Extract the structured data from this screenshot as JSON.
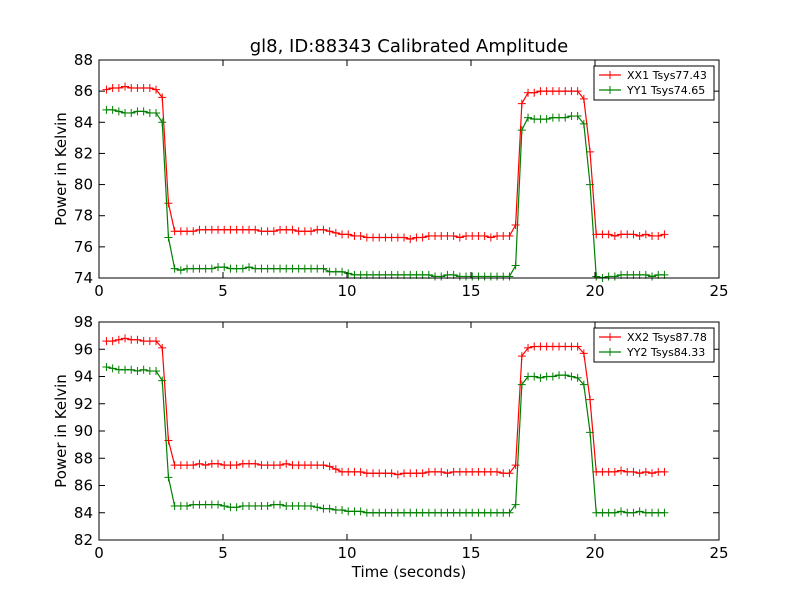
{
  "chart_data": [
    {
      "type": "line",
      "title": "gl8, ID:88343 Calibrated Amplitude",
      "xlabel": "",
      "ylabel": "Power in Kelvin",
      "xlim": [
        0,
        25
      ],
      "ylim": [
        74,
        88
      ],
      "xticks": [
        "0",
        "5",
        "10",
        "15",
        "20",
        "25"
      ],
      "yticks": [
        "74",
        "76",
        "78",
        "80",
        "82",
        "84",
        "86",
        "88"
      ],
      "legend_position": "top-right",
      "x": [
        0.3,
        0.55,
        0.8,
        1.05,
        1.3,
        1.55,
        1.8,
        2.05,
        2.3,
        2.55,
        2.8,
        3.05,
        3.3,
        3.55,
        3.8,
        4.05,
        4.3,
        4.55,
        4.8,
        5.05,
        5.3,
        5.55,
        5.8,
        6.05,
        6.3,
        6.55,
        6.8,
        7.05,
        7.3,
        7.55,
        7.8,
        8.05,
        8.3,
        8.55,
        8.8,
        9.05,
        9.3,
        9.55,
        9.8,
        10.05,
        10.3,
        10.55,
        10.8,
        11.05,
        11.3,
        11.55,
        11.8,
        12.05,
        12.3,
        12.55,
        12.8,
        13.05,
        13.3,
        13.55,
        13.8,
        14.05,
        14.3,
        14.55,
        14.8,
        15.05,
        15.3,
        15.55,
        15.8,
        16.05,
        16.3,
        16.55,
        16.8,
        17.05,
        17.3,
        17.55,
        17.8,
        18.05,
        18.3,
        18.55,
        18.8,
        19.05,
        19.3,
        19.55,
        19.8,
        20.05,
        20.3,
        20.55,
        20.8,
        21.05,
        21.3,
        21.55,
        21.8,
        22.05,
        22.3,
        22.55,
        22.8
      ],
      "series": [
        {
          "name": "XX1 Tsys77.43",
          "color": "#ff0000",
          "values": [
            86.1,
            86.2,
            86.2,
            86.3,
            86.2,
            86.2,
            86.2,
            86.2,
            86.1,
            85.6,
            78.8,
            77.0,
            77.0,
            77.0,
            77.0,
            77.1,
            77.1,
            77.1,
            77.1,
            77.1,
            77.1,
            77.1,
            77.1,
            77.1,
            77.1,
            77.0,
            77.0,
            77.0,
            77.1,
            77.1,
            77.1,
            77.0,
            77.0,
            77.0,
            77.1,
            77.1,
            77.0,
            76.9,
            76.8,
            76.8,
            76.7,
            76.7,
            76.6,
            76.6,
            76.6,
            76.6,
            76.6,
            76.6,
            76.6,
            76.5,
            76.6,
            76.6,
            76.7,
            76.7,
            76.7,
            76.7,
            76.7,
            76.6,
            76.7,
            76.7,
            76.7,
            76.7,
            76.6,
            76.7,
            76.7,
            76.7,
            77.4,
            85.2,
            85.9,
            85.9,
            86.0,
            86.0,
            86.0,
            86.0,
            86.0,
            86.0,
            86.0,
            85.5,
            82.1,
            76.8,
            76.8,
            76.8,
            76.7,
            76.8,
            76.8,
            76.8,
            76.7,
            76.8,
            76.7,
            76.7,
            76.8
          ]
        },
        {
          "name": "YY1 Tsys74.65",
          "color": "#008000",
          "values": [
            84.8,
            84.8,
            84.7,
            84.6,
            84.6,
            84.7,
            84.7,
            84.6,
            84.6,
            84.0,
            76.6,
            74.6,
            74.5,
            74.6,
            74.6,
            74.6,
            74.6,
            74.6,
            74.7,
            74.7,
            74.6,
            74.6,
            74.6,
            74.7,
            74.6,
            74.6,
            74.6,
            74.6,
            74.6,
            74.6,
            74.6,
            74.6,
            74.6,
            74.6,
            74.6,
            74.6,
            74.4,
            74.4,
            74.4,
            74.3,
            74.2,
            74.2,
            74.2,
            74.2,
            74.2,
            74.2,
            74.2,
            74.2,
            74.2,
            74.2,
            74.2,
            74.2,
            74.2,
            74.1,
            74.1,
            74.2,
            74.2,
            74.1,
            74.1,
            74.1,
            74.1,
            74.1,
            74.1,
            74.1,
            74.1,
            74.1,
            74.8,
            83.5,
            84.3,
            84.2,
            84.2,
            84.2,
            84.3,
            84.3,
            84.3,
            84.4,
            84.4,
            83.9,
            80.0,
            74.1,
            74.0,
            74.1,
            74.1,
            74.2,
            74.2,
            74.2,
            74.2,
            74.2,
            74.1,
            74.2,
            74.2
          ]
        }
      ]
    },
    {
      "type": "line",
      "title": "",
      "xlabel": "Time (seconds)",
      "ylabel": "Power in Kelvin",
      "xlim": [
        0,
        25
      ],
      "ylim": [
        82,
        98
      ],
      "xticks": [
        "0",
        "5",
        "10",
        "15",
        "20",
        "25"
      ],
      "yticks": [
        "82",
        "84",
        "86",
        "88",
        "90",
        "92",
        "94",
        "96",
        "98"
      ],
      "legend_position": "top-right",
      "x": [
        0.3,
        0.55,
        0.8,
        1.05,
        1.3,
        1.55,
        1.8,
        2.05,
        2.3,
        2.55,
        2.8,
        3.05,
        3.3,
        3.55,
        3.8,
        4.05,
        4.3,
        4.55,
        4.8,
        5.05,
        5.3,
        5.55,
        5.8,
        6.05,
        6.3,
        6.55,
        6.8,
        7.05,
        7.3,
        7.55,
        7.8,
        8.05,
        8.3,
        8.55,
        8.8,
        9.05,
        9.3,
        9.55,
        9.8,
        10.05,
        10.3,
        10.55,
        10.8,
        11.05,
        11.3,
        11.55,
        11.8,
        12.05,
        12.3,
        12.55,
        12.8,
        13.05,
        13.3,
        13.55,
        13.8,
        14.05,
        14.3,
        14.55,
        14.8,
        15.05,
        15.3,
        15.55,
        15.8,
        16.05,
        16.3,
        16.55,
        16.8,
        17.05,
        17.3,
        17.55,
        17.8,
        18.05,
        18.3,
        18.55,
        18.8,
        19.05,
        19.3,
        19.55,
        19.8,
        20.05,
        20.3,
        20.55,
        20.8,
        21.05,
        21.3,
        21.55,
        21.8,
        22.05,
        22.3,
        22.55,
        22.8
      ],
      "series": [
        {
          "name": "XX2 Tsys87.78",
          "color": "#ff0000",
          "values": [
            96.6,
            96.6,
            96.7,
            96.8,
            96.7,
            96.7,
            96.6,
            96.6,
            96.6,
            96.1,
            89.3,
            87.5,
            87.5,
            87.5,
            87.5,
            87.6,
            87.5,
            87.6,
            87.6,
            87.5,
            87.5,
            87.5,
            87.6,
            87.6,
            87.6,
            87.5,
            87.5,
            87.5,
            87.5,
            87.6,
            87.5,
            87.5,
            87.5,
            87.5,
            87.5,
            87.5,
            87.4,
            87.2,
            87.0,
            87.0,
            87.0,
            87.0,
            86.9,
            86.9,
            86.9,
            86.9,
            86.9,
            86.8,
            86.9,
            86.9,
            86.9,
            86.9,
            87.0,
            87.0,
            87.0,
            86.9,
            87.0,
            87.0,
            87.0,
            87.0,
            87.0,
            87.0,
            87.0,
            87.0,
            86.9,
            86.9,
            87.5,
            95.5,
            96.1,
            96.2,
            96.2,
            96.2,
            96.2,
            96.2,
            96.2,
            96.2,
            96.2,
            95.7,
            92.3,
            87.0,
            87.0,
            87.0,
            87.0,
            87.1,
            87.0,
            87.0,
            86.9,
            87.0,
            86.9,
            87.0,
            87.0
          ]
        },
        {
          "name": "YY2 Tsys84.33",
          "color": "#008000",
          "values": [
            94.7,
            94.6,
            94.5,
            94.5,
            94.5,
            94.4,
            94.5,
            94.4,
            94.4,
            93.7,
            86.6,
            84.5,
            84.5,
            84.5,
            84.6,
            84.6,
            84.6,
            84.6,
            84.6,
            84.5,
            84.4,
            84.4,
            84.5,
            84.5,
            84.5,
            84.5,
            84.5,
            84.6,
            84.6,
            84.5,
            84.5,
            84.5,
            84.5,
            84.5,
            84.4,
            84.3,
            84.3,
            84.2,
            84.2,
            84.1,
            84.1,
            84.1,
            84.0,
            84.0,
            84.0,
            84.0,
            84.0,
            84.0,
            84.0,
            84.0,
            84.0,
            84.0,
            84.0,
            84.0,
            84.0,
            84.0,
            84.0,
            84.0,
            84.0,
            84.0,
            84.0,
            84.0,
            84.0,
            84.0,
            84.0,
            84.0,
            84.6,
            93.4,
            94.0,
            94.0,
            93.9,
            94.0,
            94.0,
            94.1,
            94.1,
            94.0,
            93.9,
            93.4,
            89.9,
            84.0,
            84.0,
            84.0,
            84.0,
            84.1,
            84.0,
            84.0,
            84.1,
            84.0,
            84.0,
            84.0,
            84.0
          ]
        }
      ]
    }
  ]
}
